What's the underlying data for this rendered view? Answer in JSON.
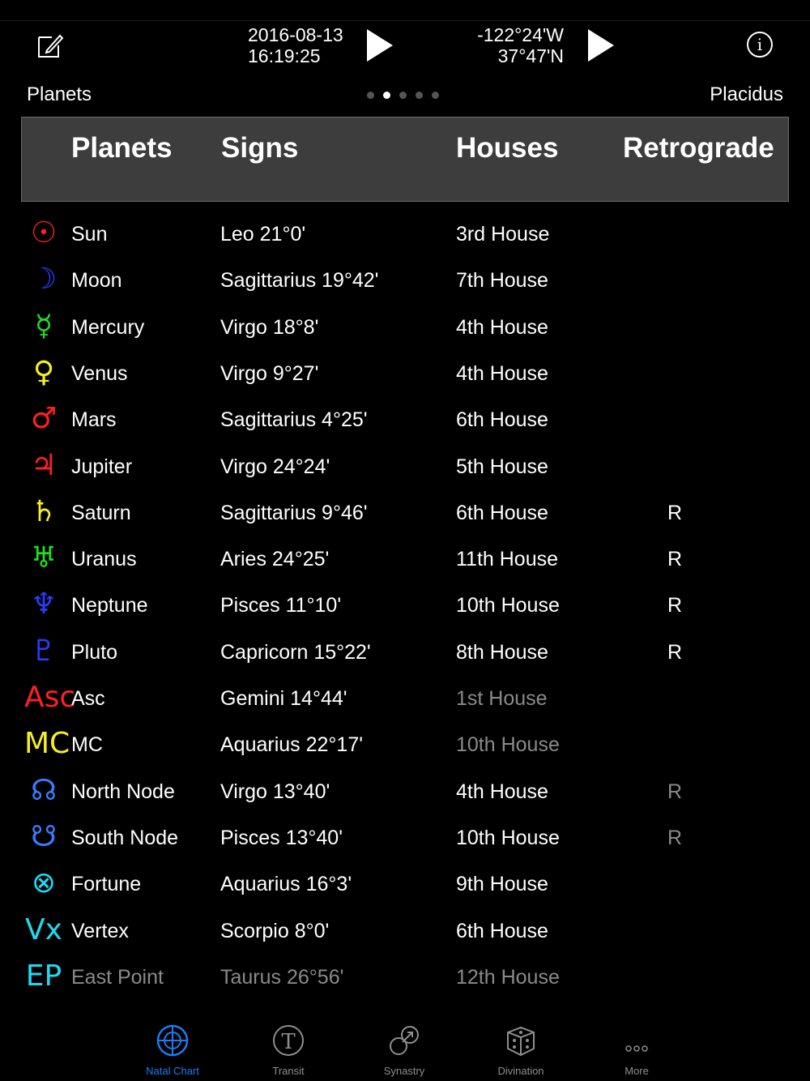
{
  "toolbar": {
    "date": "2016-08-13",
    "time": "16:19:25",
    "longitude": "-122°24'W",
    "latitude": "37°47'N",
    "edit_icon": "edit-icon",
    "info_icon": "info-icon"
  },
  "subheader": {
    "left": "Planets",
    "right": "Placidus",
    "page_count": 5,
    "page_active": 2
  },
  "table": {
    "headers": [
      "Planets",
      "Signs",
      "Houses",
      "Retrograde"
    ],
    "rows": [
      {
        "symbol": "☉",
        "color": "#ff2020",
        "name": "Sun",
        "sign": "Leo 21°0'",
        "house": "3rd House",
        "retro": "",
        "house_dim": false,
        "retro_dim": false,
        "dim": false
      },
      {
        "symbol": "☽",
        "color": "#2a3cff",
        "name": "Moon",
        "sign": "Sagittarius 19°42'",
        "house": "7th House",
        "retro": "",
        "house_dim": false,
        "retro_dim": false,
        "dim": false
      },
      {
        "symbol": "☿",
        "color": "#20e020",
        "name": "Mercury",
        "sign": "Virgo 18°8'",
        "house": "4th House",
        "retro": "",
        "house_dim": false,
        "retro_dim": false,
        "dim": false
      },
      {
        "symbol": "♀",
        "color": "#f5f020",
        "name": "Venus",
        "sign": "Virgo 9°27'",
        "house": "4th House",
        "retro": "",
        "house_dim": false,
        "retro_dim": false,
        "dim": false
      },
      {
        "symbol": "♂",
        "color": "#ff2020",
        "name": "Mars",
        "sign": "Sagittarius 4°25'",
        "house": "6th House",
        "retro": "",
        "house_dim": false,
        "retro_dim": false,
        "dim": false
      },
      {
        "symbol": "♃",
        "color": "#ff2020",
        "name": "Jupiter",
        "sign": "Virgo 24°24'",
        "house": "5th House",
        "retro": "",
        "house_dim": false,
        "retro_dim": false,
        "dim": false
      },
      {
        "symbol": "♄",
        "color": "#f5f020",
        "name": "Saturn",
        "sign": "Sagittarius 9°46'",
        "house": "6th House",
        "retro": "R",
        "house_dim": false,
        "retro_dim": false,
        "dim": false
      },
      {
        "symbol": "♅",
        "color": "#20e020",
        "name": "Uranus",
        "sign": "Aries 24°25'",
        "house": "11th House",
        "retro": "R",
        "house_dim": false,
        "retro_dim": false,
        "dim": false
      },
      {
        "symbol": "♆",
        "color": "#2a3cff",
        "name": "Neptune",
        "sign": "Pisces 11°10'",
        "house": "10th House",
        "retro": "R",
        "house_dim": false,
        "retro_dim": false,
        "dim": false
      },
      {
        "symbol": "♇",
        "color": "#2a3cff",
        "name": "Pluto",
        "sign": "Capricorn 15°22'",
        "house": "8th House",
        "retro": "R",
        "house_dim": false,
        "retro_dim": false,
        "dim": false
      },
      {
        "symbol": "Asc",
        "color": "#ff2020",
        "name": "Asc",
        "sign": "Gemini 14°44'",
        "house": "1st House",
        "retro": "",
        "house_dim": true,
        "retro_dim": false,
        "dim": false
      },
      {
        "symbol": "MC",
        "color": "#f5f020",
        "name": "MC",
        "sign": "Aquarius 22°17'",
        "house": "10th House",
        "retro": "",
        "house_dim": true,
        "retro_dim": false,
        "dim": false
      },
      {
        "symbol": "☊",
        "color": "#3a7cff",
        "name": "North Node",
        "sign": "Virgo 13°40'",
        "house": "4th House",
        "retro": "R",
        "house_dim": false,
        "retro_dim": true,
        "dim": false
      },
      {
        "symbol": "☋",
        "color": "#3a7cff",
        "name": "South Node",
        "sign": "Pisces 13°40'",
        "house": "10th House",
        "retro": "R",
        "house_dim": false,
        "retro_dim": true,
        "dim": false
      },
      {
        "symbol": "⊗",
        "color": "#20d8f0",
        "name": "Fortune",
        "sign": "Aquarius 16°3'",
        "house": "9th House",
        "retro": "",
        "house_dim": false,
        "retro_dim": false,
        "dim": false
      },
      {
        "symbol": "Vx",
        "color": "#20d8f0",
        "name": "Vertex",
        "sign": "Scorpio 8°0'",
        "house": "6th House",
        "retro": "",
        "house_dim": false,
        "retro_dim": false,
        "dim": false
      },
      {
        "symbol": "EP",
        "color": "#20d8f0",
        "name": "East Point",
        "sign": "Taurus 26°56'",
        "house": "12th House",
        "retro": "",
        "house_dim": true,
        "retro_dim": false,
        "dim": true
      }
    ]
  },
  "tabs": [
    {
      "label": "Natal Chart",
      "icon": "natal-chart-icon",
      "active": true
    },
    {
      "label": "Transit",
      "icon": "transit-icon",
      "active": false
    },
    {
      "label": "Synastry",
      "icon": "synastry-icon",
      "active": false
    },
    {
      "label": "Divination",
      "icon": "dice-icon",
      "active": false
    },
    {
      "label": "More",
      "icon": "more-icon",
      "active": false
    }
  ],
  "colors": {
    "accent": "#1a7cf5",
    "header_bg": "#3d3d3d",
    "dim_text": "#8a8a8a"
  }
}
